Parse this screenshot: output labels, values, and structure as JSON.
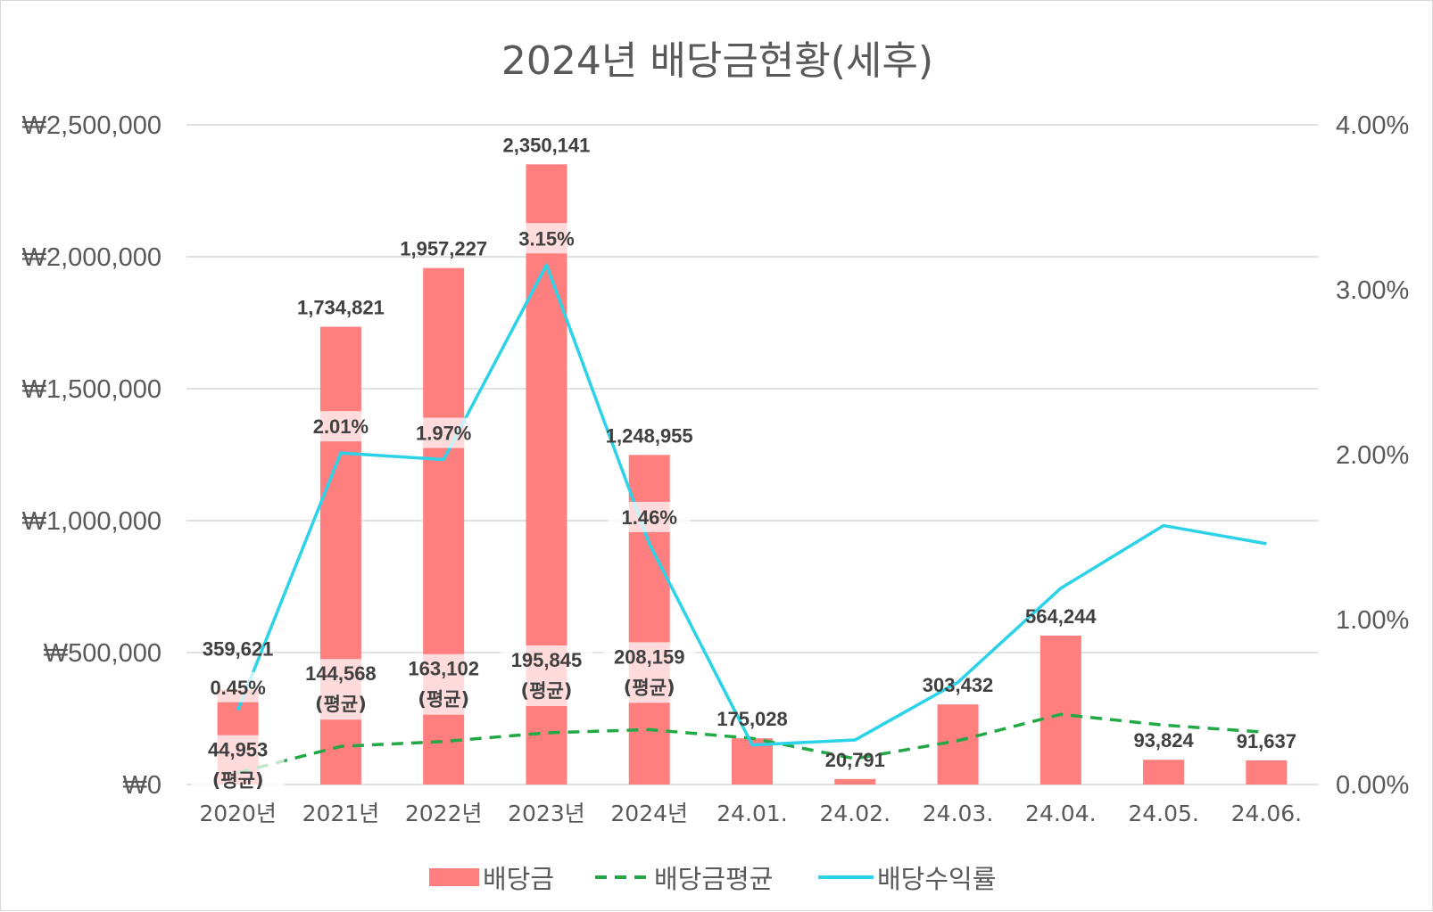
{
  "chart_data": {
    "type": "bar",
    "title": "2024년 배당금현황(세후)",
    "categories": [
      "2020년",
      "2021년",
      "2022년",
      "2023년",
      "2024년",
      "24.01.",
      "24.02.",
      "24.03.",
      "24.04.",
      "24.05.",
      "24.06."
    ],
    "series": [
      {
        "name": "배당금",
        "type": "bar",
        "axis": "left",
        "color": "#ff7f7f",
        "values": [
          359621,
          1734821,
          1957227,
          2350141,
          1248955,
          175028,
          20791,
          303432,
          564244,
          93824,
          91637
        ],
        "labels": [
          "359,621",
          "1,734,821",
          "1,957,227",
          "2,350,141",
          "1,248,955",
          "175,028",
          "20,791",
          "303,432",
          "564,244",
          "93,824",
          "91,637"
        ]
      },
      {
        "name": "배당금평균",
        "type": "line",
        "style": "dashed",
        "axis": "left",
        "color": "#22a845",
        "values": [
          44953,
          144568,
          163102,
          195845,
          208159,
          175028,
          98000,
          166000,
          266000,
          225000,
          198000
        ],
        "labels": [
          "44,953",
          "144,568",
          "163,102",
          "195,845",
          "208,159",
          null,
          null,
          null,
          null,
          null,
          null
        ],
        "note_label": "(평균)"
      },
      {
        "name": "배당수익률",
        "type": "line",
        "axis": "right",
        "color": "#2bd2e8",
        "values": [
          0.45,
          2.01,
          1.97,
          3.15,
          1.46,
          0.24,
          0.27,
          0.62,
          1.19,
          1.57,
          1.46
        ],
        "labels": [
          "0.45%",
          "2.01%",
          "1.97%",
          "3.15%",
          "1.46%",
          null,
          null,
          null,
          null,
          null,
          null
        ]
      }
    ],
    "y_left": {
      "ylim": [
        0,
        2500000
      ],
      "ticks": [
        "₩0",
        "₩500,000",
        "₩1,000,000",
        "₩1,500,000",
        "₩2,000,000",
        "₩2,500,000"
      ]
    },
    "y_right": {
      "ylim": [
        0,
        4
      ],
      "unit": "%",
      "ticks": [
        "0.00%",
        "1.00%",
        "2.00%",
        "3.00%",
        "4.00%"
      ]
    },
    "grid": true,
    "legend_position": "bottom",
    "xlabel": "",
    "ylabel": ""
  }
}
